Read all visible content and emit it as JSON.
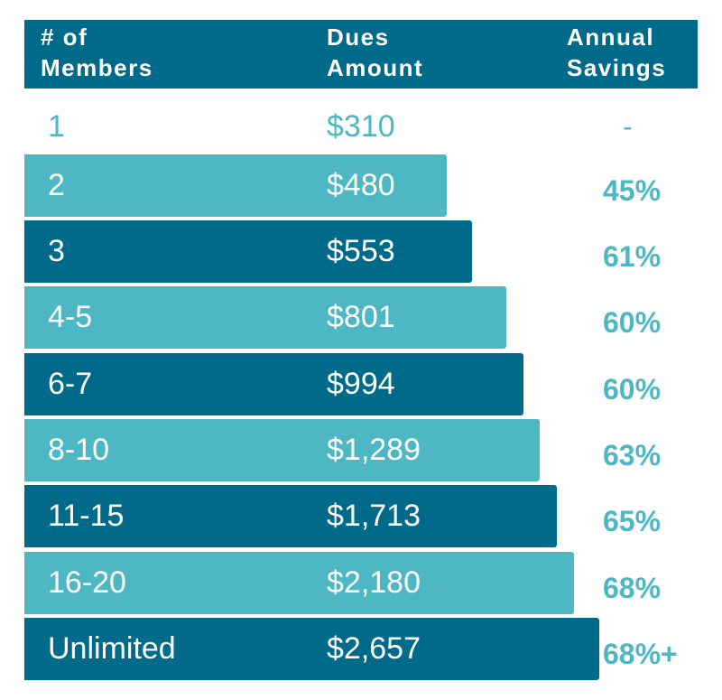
{
  "header": {
    "members": "# of\nMembers",
    "dues": "Dues\nAmount",
    "savings": "Annual\nSavings"
  },
  "colors": {
    "dark": "#006a8a",
    "light": "#4db8c4"
  },
  "rows": [
    {
      "members": "1",
      "dues": "$310",
      "savings": "-"
    },
    {
      "members": "2",
      "dues": "$480",
      "savings": "45%"
    },
    {
      "members": "3",
      "dues": "$553",
      "savings": "61%"
    },
    {
      "members": "4-5",
      "dues": "$801",
      "savings": "60%"
    },
    {
      "members": "6-7",
      "dues": "$994",
      "savings": "60%"
    },
    {
      "members": "8-10",
      "dues": "$1,289",
      "savings": "63%"
    },
    {
      "members": "11-15",
      "dues": "$1,713",
      "savings": "65%"
    },
    {
      "members": "16-20",
      "dues": "$2,180",
      "savings": "68%"
    },
    {
      "members": "Unlimited",
      "dues": "$2,657",
      "savings": "68%+"
    }
  ],
  "chart_data": {
    "type": "table",
    "columns": [
      "# of Members",
      "Dues Amount",
      "Annual Savings"
    ],
    "categories": [
      "1",
      "2",
      "3",
      "4-5",
      "6-7",
      "8-10",
      "11-15",
      "16-20",
      "Unlimited"
    ],
    "values": [
      310,
      480,
      553,
      801,
      994,
      1289,
      1713,
      2180,
      2657
    ],
    "savings": [
      "-",
      "45%",
      "61%",
      "60%",
      "60%",
      "63%",
      "65%",
      "68%",
      "68%+"
    ]
  }
}
